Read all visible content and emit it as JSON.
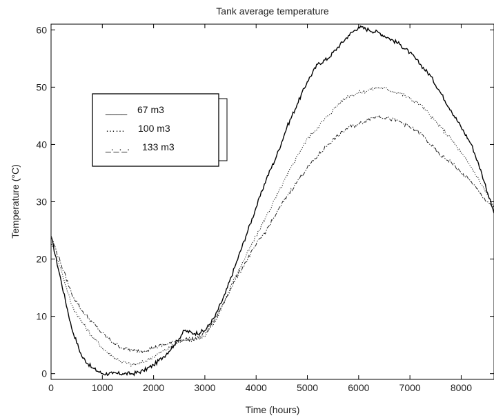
{
  "chart_data": {
    "type": "line",
    "title": "Tank average temperature",
    "xlabel": "Time (hours)",
    "ylabel": "Temperature (°C)",
    "xlim": [
      0,
      8640
    ],
    "ylim": [
      -1,
      61
    ],
    "xticks": [
      0,
      1000,
      2000,
      3000,
      4000,
      5000,
      6000,
      7000,
      8000
    ],
    "yticks": [
      0,
      10,
      20,
      30,
      40,
      50,
      60
    ],
    "grid": false,
    "legend_position": "top-left",
    "legend": [
      {
        "label": "67 m3",
        "marker": "____"
      },
      {
        "label": "100 m3",
        "marker": "……"
      },
      {
        "label": "133 m3",
        "marker": "_._._."
      }
    ],
    "series": [
      {
        "name": "67 m3",
        "style": "solid",
        "x": [
          0,
          200,
          400,
          600,
          800,
          1000,
          1200,
          1400,
          1600,
          1800,
          2000,
          2200,
          2400,
          2600,
          2800,
          3000,
          3200,
          3400,
          3600,
          3800,
          4000,
          4200,
          4400,
          4600,
          4800,
          5000,
          5200,
          5400,
          5600,
          5800,
          6000,
          6200,
          6400,
          6600,
          6800,
          7000,
          7200,
          7400,
          7600,
          7800,
          8000,
          8200,
          8400,
          8640
        ],
        "y": [
          24,
          16,
          8,
          3,
          1,
          0,
          0,
          0,
          0,
          0.5,
          1.5,
          3,
          5,
          7.5,
          7,
          7.5,
          10,
          14,
          19,
          24,
          29,
          34,
          38,
          43,
          47,
          51,
          54,
          55,
          57,
          59,
          60.5,
          60,
          59.5,
          58.5,
          57.5,
          56,
          54,
          52,
          49,
          46,
          43,
          40,
          35,
          28
        ]
      },
      {
        "name": "100 m3",
        "style": "dotted",
        "x": [
          0,
          200,
          400,
          600,
          800,
          1000,
          1200,
          1400,
          1600,
          1800,
          2000,
          2200,
          2400,
          2600,
          2800,
          3000,
          3200,
          3400,
          3600,
          3800,
          4000,
          4200,
          4400,
          4600,
          4800,
          5000,
          5200,
          5400,
          5600,
          5800,
          6000,
          6200,
          6400,
          6600,
          6800,
          7000,
          7200,
          7400,
          7600,
          7800,
          8000,
          8200,
          8400,
          8640
        ],
        "y": [
          23,
          18,
          12,
          9,
          6.5,
          4.5,
          3,
          2,
          1.5,
          2,
          3,
          4,
          5,
          6,
          6,
          6.5,
          9,
          13,
          17,
          20.5,
          24,
          27.5,
          31,
          34.5,
          38,
          41,
          43,
          45,
          47,
          48.5,
          49,
          49.5,
          50,
          49.5,
          49,
          48,
          47,
          45,
          43,
          41,
          38.5,
          36,
          33,
          29
        ]
      },
      {
        "name": "133 m3",
        "style": "dashdot",
        "x": [
          0,
          200,
          400,
          600,
          800,
          1000,
          1200,
          1400,
          1600,
          1800,
          2000,
          2200,
          2400,
          2600,
          2800,
          3000,
          3200,
          3400,
          3600,
          3800,
          4000,
          4200,
          4400,
          4600,
          4800,
          5000,
          5200,
          5400,
          5600,
          5800,
          6000,
          6200,
          6400,
          6600,
          6800,
          7000,
          7200,
          7400,
          7600,
          7800,
          8000,
          8200,
          8400,
          8640
        ],
        "y": [
          24,
          19,
          14,
          11,
          9,
          7,
          5.5,
          4.5,
          4,
          4,
          4.5,
          5,
          5.5,
          6,
          6,
          7,
          9.5,
          13,
          16.5,
          19.5,
          22.5,
          25,
          28,
          31,
          33.5,
          36,
          38,
          40,
          41.5,
          43,
          43.5,
          44.5,
          45,
          44.5,
          44,
          43,
          42,
          40,
          38,
          37,
          35,
          33.5,
          31,
          29
        ]
      }
    ]
  }
}
